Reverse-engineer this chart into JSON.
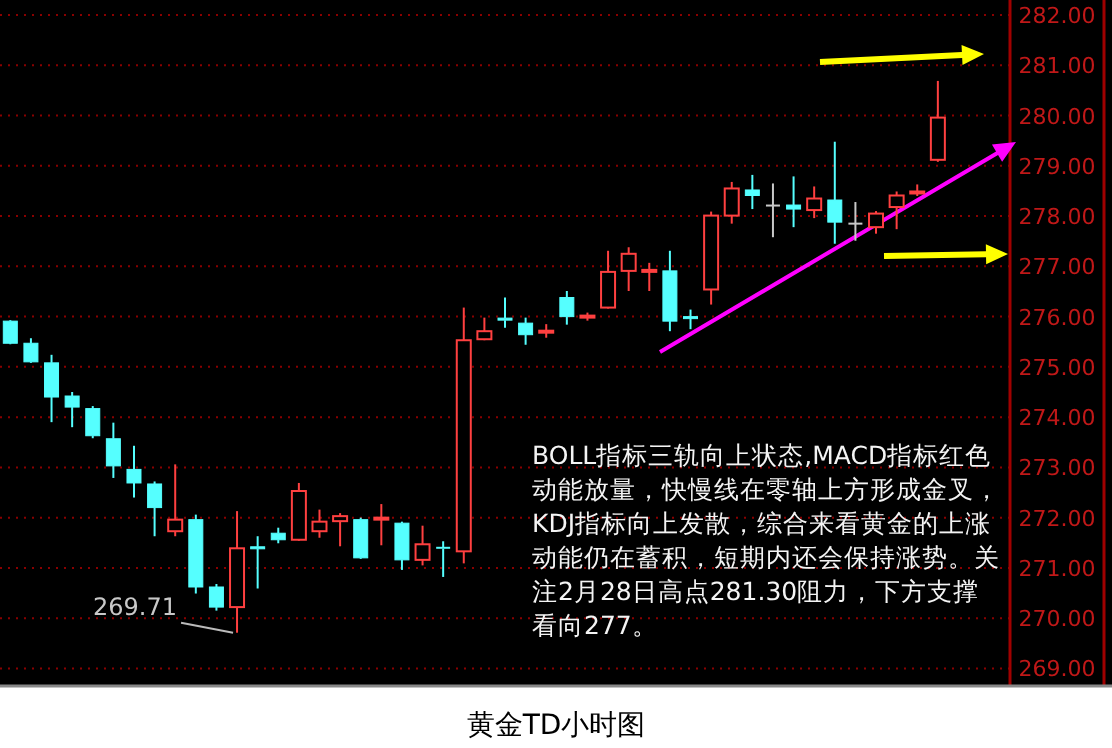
{
  "chart_data": {
    "type": "candlestick",
    "title": "黄金TD小时图",
    "categories": [
      null,
      null,
      null,
      null,
      null,
      null,
      null,
      null,
      null,
      null,
      null,
      null,
      null,
      null,
      null,
      null,
      null,
      null,
      null,
      null,
      null,
      null,
      null,
      null,
      null,
      null,
      null,
      null,
      null,
      null,
      null,
      null,
      null,
      null,
      null,
      null,
      null,
      null,
      null,
      null,
      null,
      null,
      null,
      null,
      null,
      null
    ],
    "ohlc": [
      [
        275.91,
        275.93,
        275.45,
        275.47
      ],
      [
        275.47,
        275.57,
        275.08,
        275.1
      ],
      [
        275.08,
        275.24,
        273.9,
        274.4
      ],
      [
        274.42,
        274.5,
        273.8,
        274.2
      ],
      [
        274.17,
        274.22,
        273.58,
        273.63
      ],
      [
        273.57,
        273.89,
        272.79,
        273.03
      ],
      [
        272.96,
        273.43,
        272.4,
        272.69
      ],
      [
        272.67,
        272.72,
        271.63,
        272.2
      ],
      [
        271.73,
        273.06,
        271.63,
        271.96
      ],
      [
        271.96,
        272.06,
        270.49,
        270.62
      ],
      [
        270.62,
        270.68,
        270.15,
        270.22
      ],
      [
        270.22,
        272.13,
        269.71,
        271.39
      ],
      [
        271.42,
        271.63,
        270.59,
        271.38
      ],
      [
        271.69,
        271.8,
        271.49,
        271.56
      ],
      [
        271.56,
        272.69,
        271.54,
        272.53
      ],
      [
        271.73,
        272.16,
        271.6,
        271.92
      ],
      [
        271.93,
        272.09,
        271.43,
        272.03
      ],
      [
        271.96,
        272.0,
        271.18,
        271.2
      ],
      [
        271.97,
        272.27,
        271.45,
        272.0
      ],
      [
        271.89,
        271.92,
        270.96,
        271.16
      ],
      [
        271.16,
        271.84,
        271.05,
        271.47
      ],
      [
        271.4,
        271.53,
        270.82,
        271.38
      ],
      [
        271.33,
        276.18,
        271.09,
        275.53
      ],
      [
        275.55,
        275.98,
        275.53,
        275.71
      ],
      [
        275.97,
        276.38,
        275.78,
        275.93
      ],
      [
        275.87,
        275.98,
        275.44,
        275.64
      ],
      [
        275.7,
        275.85,
        275.58,
        275.72
      ],
      [
        276.38,
        276.51,
        275.84,
        276.0
      ],
      [
        275.98,
        276.08,
        275.92,
        276.02
      ],
      [
        276.18,
        277.31,
        276.16,
        276.89
      ],
      [
        276.91,
        277.38,
        276.51,
        277.25
      ],
      [
        276.89,
        277.07,
        276.51,
        276.93
      ],
      [
        276.91,
        277.31,
        275.71,
        275.91
      ],
      [
        276.0,
        276.14,
        275.75,
        275.96
      ],
      [
        276.54,
        278.09,
        276.24,
        278.01
      ],
      [
        278.01,
        278.68,
        277.85,
        278.55
      ],
      [
        278.52,
        278.82,
        278.14,
        278.41
      ],
      [
        278.21,
        278.65,
        277.58,
        278.21
      ],
      [
        278.22,
        278.79,
        277.78,
        278.14
      ],
      [
        278.12,
        278.59,
        277.96,
        278.35
      ],
      [
        278.32,
        279.48,
        277.45,
        277.88
      ],
      [
        277.85,
        278.28,
        277.51,
        277.85
      ],
      [
        277.78,
        278.1,
        277.65,
        278.05
      ],
      [
        278.18,
        278.49,
        277.74,
        278.41
      ],
      [
        278.45,
        278.63,
        278.4,
        278.49
      ],
      [
        279.12,
        280.69,
        279.08,
        279.96
      ]
    ],
    "ylim": [
      268.65,
      282.3
    ],
    "yticks": [
      {
        "value": 282,
        "label": "282.00"
      },
      {
        "value": 281,
        "label": "281.00"
      },
      {
        "value": 280,
        "label": "280.00"
      },
      {
        "value": 279,
        "label": "279.00"
      },
      {
        "value": 278,
        "label": "278.00"
      },
      {
        "value": 277,
        "label": "277.00"
      },
      {
        "value": 276,
        "label": "276.00"
      },
      {
        "value": 275,
        "label": "275.00"
      },
      {
        "value": 274,
        "label": "274.00"
      },
      {
        "value": 273,
        "label": "273.00"
      },
      {
        "value": 272,
        "label": "272.00"
      },
      {
        "value": 271,
        "label": "271.00"
      },
      {
        "value": 270,
        "label": "270.00"
      },
      {
        "value": 269,
        "label": "269.00"
      }
    ],
    "grid": "y",
    "annotations": [
      "269.71",
      "BOLL指标三轨向上状态,MACD指标红色动能放量，快慢线在零轴上方形成金叉，KDJ指标向上发散，综合来看黄金的上涨动能仍在蓄积，短期内还会保持涨势。关注2月28日高点281.30阻力，下方支撑看向277。"
    ]
  }
}
